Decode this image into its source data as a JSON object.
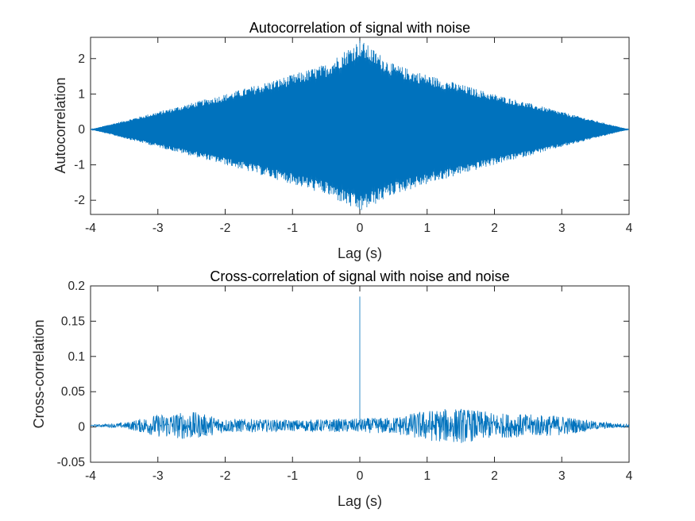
{
  "chart_data": [
    {
      "type": "line",
      "title": "Autocorrelation of signal with noise",
      "xlabel": "Lag (s)",
      "ylabel": "Autocorrelation",
      "xlim": [
        -4,
        4
      ],
      "ylim": [
        -2.4,
        2.6
      ],
      "xticks": [
        -4,
        -3,
        -2,
        -1,
        0,
        1,
        2,
        3,
        4
      ],
      "yticks": [
        -2,
        -1,
        0,
        1,
        2
      ],
      "grid": false,
      "series": [
        {
          "color": "#0072BD",
          "description_points": {
            "x": [
              -4,
              -3,
              -2,
              -1,
              -0.5,
              0,
              0.5,
              1,
              2,
              3,
              4
            ],
            "upper": [
              0,
              0.5,
              1.0,
              1.55,
              1.85,
              2.55,
              1.85,
              1.55,
              1.0,
              0.5,
              0
            ],
            "lower": [
              0,
              -0.5,
              -1.0,
              -1.55,
              -1.85,
              -2.35,
              -1.85,
              -1.55,
              -1.0,
              -0.5,
              0
            ]
          }
        }
      ]
    },
    {
      "type": "line",
      "title": "Cross-correlation of signal with noise and noise",
      "xlabel": "Lag (s)",
      "ylabel": "Cross-correlation",
      "xlim": [
        -4,
        4
      ],
      "ylim": [
        -0.05,
        0.2
      ],
      "xticks": [
        -4,
        -3,
        -2,
        -1,
        0,
        1,
        2,
        3,
        4
      ],
      "yticks": [
        -0.05,
        0,
        0.05,
        0.1,
        0.15,
        0.2
      ],
      "grid": false,
      "series": [
        {
          "color": "#0072BD",
          "description_points": {
            "x": [
              -4,
              -3.5,
              -3,
              -2.5,
              -2,
              -1,
              0,
              0.5,
              1,
              1.5,
              2,
              3,
              3.5,
              4
            ],
            "amplitude": [
              0.001,
              0.004,
              0.016,
              0.02,
              0.01,
              0.008,
              0.01,
              0.012,
              0.022,
              0.025,
              0.018,
              0.014,
              0.006,
              0.002
            ]
          },
          "peak": {
            "x": 0,
            "y": 0.185
          }
        }
      ]
    }
  ]
}
